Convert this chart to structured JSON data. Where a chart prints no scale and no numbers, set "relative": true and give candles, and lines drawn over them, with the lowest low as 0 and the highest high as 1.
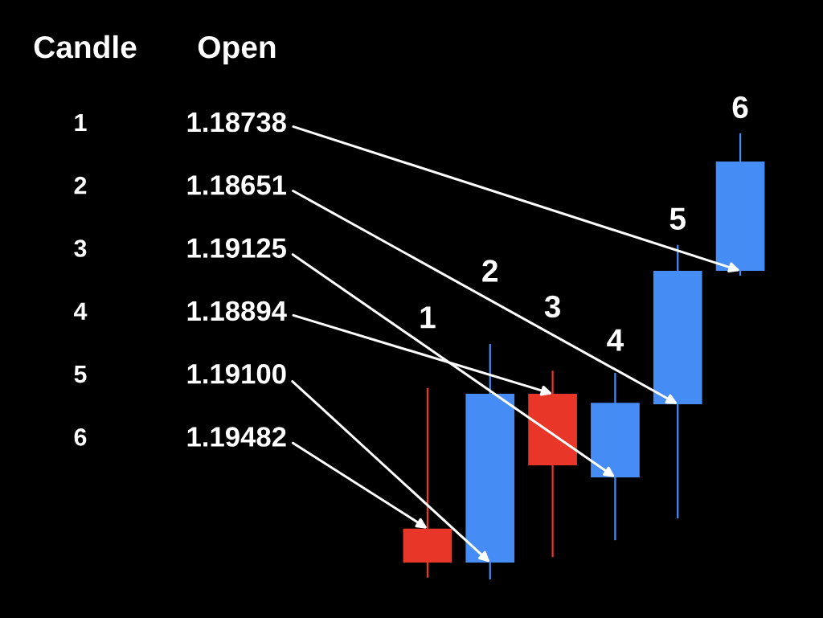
{
  "chart_data": {
    "type": "candlestick",
    "relative": true,
    "categories": [
      "1",
      "2",
      "3",
      "4",
      "5",
      "6"
    ],
    "ohlc": [
      [
        0.114,
        0.429,
        0.004,
        0.038
      ],
      [
        0.038,
        0.528,
        0,
        0.416
      ],
      [
        0.416,
        0.468,
        0.05,
        0.256
      ],
      [
        0.229,
        0.463,
        0.088,
        0.396
      ],
      [
        0.393,
        0.75,
        0.137,
        0.692
      ],
      [
        0.692,
        1,
        0.681,
        0.937
      ]
    ],
    "colors": [
      "#e83628",
      "#458cf5",
      "#e83628",
      "#458cf5",
      "#458cf5",
      "#458cf5"
    ],
    "annotations": [
      "Candle",
      "Open",
      "1",
      "2",
      "3",
      "4",
      "5",
      "6",
      {
        "text": "1.18738",
        "x": "6",
        "y": 0.692
      },
      {
        "text": "1.18651",
        "x": "5",
        "y": 0.393
      },
      {
        "text": "1.19125",
        "x": "4",
        "y": 0.229
      },
      {
        "text": "1.18894",
        "x": "3",
        "y": 0.416
      },
      {
        "text": "1.19100",
        "x": "2",
        "y": 0.038
      },
      {
        "text": "1.19482",
        "x": "1",
        "y": 0.114
      }
    ]
  }
}
